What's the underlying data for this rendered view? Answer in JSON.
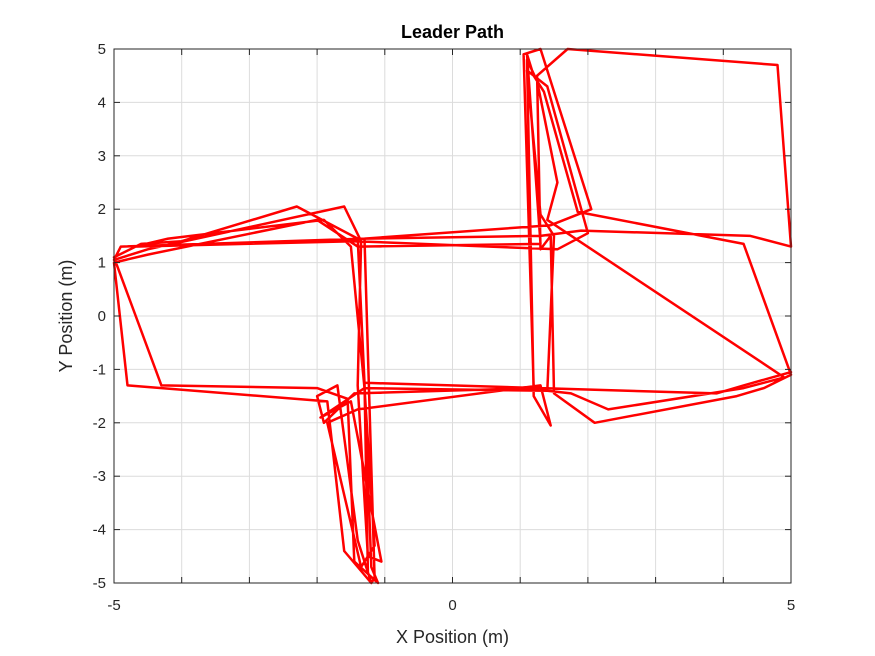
{
  "chart_data": {
    "type": "line",
    "title": "Leader Path",
    "xlabel": "X Position (m)",
    "ylabel": "Y Position (m)",
    "xlim": [
      -5,
      5
    ],
    "ylim": [
      -5,
      5
    ],
    "xticks": [
      -5,
      0,
      5
    ],
    "yticks": [
      -5,
      -4,
      -3,
      -2,
      -1,
      0,
      1,
      2,
      3,
      4,
      5
    ],
    "xgrid": [
      -5,
      -4,
      -3,
      -2,
      -1,
      0,
      1,
      2,
      3,
      4,
      5
    ],
    "grid": true,
    "series": [
      {
        "color": "#ff0000",
        "x": [
          5,
          4.3,
          3.9,
          -1.3,
          -1.2,
          -1.1,
          -1.45,
          -1.55,
          -2.0,
          -4.3,
          -5,
          -4.6,
          -4.0,
          -2.3,
          -1.4,
          -1.3,
          -1.25,
          -1.2,
          -1.6,
          -1.85,
          -4.8,
          -5,
          -4.5,
          -2.0,
          -1.4,
          1.3,
          1.1,
          1.2,
          1.35,
          1.85,
          4.3,
          5,
          4.6,
          4.2,
          2.1,
          1.5,
          1.45,
          1.3,
          1.25,
          1.7,
          4.8,
          5,
          4.4,
          1.9,
          1.3,
          -1.3,
          -1.15,
          -1.2,
          -1.4,
          -1.7,
          -2.0,
          -1.9,
          -1.45,
          1.2,
          1.05,
          1.3,
          2.05,
          1.45,
          -1.3,
          -4.9,
          -5,
          -4.5,
          -1.6,
          -1.35,
          -1.4,
          -1.25,
          -1.05,
          -1.5,
          -1.95,
          -1.3,
          1.4,
          1.5,
          1.3,
          1.1,
          1.4,
          2.0,
          1.55,
          -1.45,
          -4.7,
          -4.2,
          -1.9,
          -1.5,
          -1.3,
          -1.15,
          -1.35,
          -1.85,
          -1.4,
          1.3,
          1.45,
          1.2,
          1.1,
          1.25,
          1.55,
          1.4,
          4.9,
          4.3,
          2.3,
          1.75,
          1.4
        ],
        "y": [
          -1.05,
          -1.3,
          -1.45,
          -1.25,
          -4.7,
          -5,
          -4.6,
          -1.55,
          -1.35,
          -1.3,
          1.1,
          1.35,
          1.4,
          2.05,
          1.45,
          -1.25,
          -4.8,
          -5,
          -4.4,
          -1.6,
          -1.3,
          1.0,
          1.15,
          1.8,
          1.3,
          1.35,
          4.9,
          4.5,
          4.2,
          1.95,
          1.35,
          -1.1,
          -1.35,
          -1.5,
          -2.0,
          -1.45,
          1.5,
          1.25,
          4.5,
          5,
          4.7,
          1.3,
          1.5,
          1.6,
          1.5,
          1.45,
          -4.9,
          -5,
          -4.2,
          -1.3,
          -1.5,
          -2.0,
          -1.45,
          -1.35,
          4.9,
          5,
          2.0,
          1.7,
          1.45,
          1.3,
          1.05,
          1.25,
          2.05,
          1.4,
          -1.3,
          -4.5,
          -4.6,
          -1.6,
          -1.9,
          -1.35,
          -1.4,
          1.5,
          1.9,
          4.6,
          4.3,
          1.55,
          1.25,
          1.4,
          1.3,
          1.45,
          1.8,
          1.3,
          -1.35,
          -4.3,
          -4.7,
          -2.0,
          -1.75,
          -1.3,
          -2.05,
          -1.5,
          4.8,
          4.4,
          2.5,
          1.8,
          -1.15,
          -1.35,
          -1.75,
          -1.45,
          -1.4
        ]
      }
    ]
  }
}
